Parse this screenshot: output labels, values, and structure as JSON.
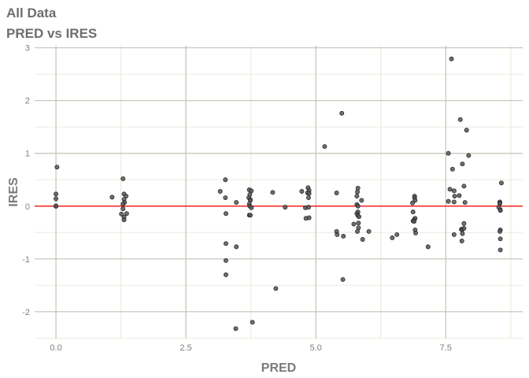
{
  "chart_data": {
    "type": "scatter",
    "title": "All Data",
    "subtitle": "PRED vs IRES",
    "xlabel": "PRED",
    "ylabel": "IRES",
    "xlim": [
      -0.41,
      8.98
    ],
    "ylim": [
      -2.51,
      3.04
    ],
    "xticks": [
      0,
      2.5,
      5,
      7.5
    ],
    "xtick_labels": [
      "0.0",
      "2.5",
      "5.0",
      "7.5"
    ],
    "yticks": [
      -2,
      -1,
      0,
      1,
      2,
      3
    ],
    "ytick_labels": [
      "-2",
      "-1",
      "0",
      "1",
      "2",
      "3"
    ],
    "grid": true,
    "reference_line": {
      "y": 0,
      "color": "#ff0000"
    },
    "point_color": "#555555",
    "points": [
      [
        0.02,
        0.74
      ],
      [
        0,
        0.23
      ],
      [
        0,
        0.14
      ],
      [
        0,
        0
      ],
      [
        0,
        0
      ],
      [
        0,
        0
      ],
      [
        1.29,
        0.52
      ],
      [
        1.08,
        0.17
      ],
      [
        1.31,
        0.23
      ],
      [
        1.35,
        0.19
      ],
      [
        1.31,
        0.13
      ],
      [
        1.32,
        0.07
      ],
      [
        1.29,
        0.04
      ],
      [
        1.29,
        -0.05
      ],
      [
        1.26,
        -0.15
      ],
      [
        1.36,
        -0.14
      ],
      [
        1.31,
        -0.21
      ],
      [
        1.31,
        -0.26
      ],
      [
        3.26,
        0.5
      ],
      [
        3.16,
        0.28
      ],
      [
        3.26,
        0.16
      ],
      [
        3.47,
        0.07
      ],
      [
        3.27,
        -0.14
      ],
      [
        3.27,
        -0.71
      ],
      [
        3.47,
        -0.77
      ],
      [
        3.27,
        -1.03
      ],
      [
        3.27,
        -1.3
      ],
      [
        3.46,
        -2.32
      ],
      [
        3.78,
        -2.2
      ],
      [
        4.23,
        -1.56
      ],
      [
        3.72,
        0.31
      ],
      [
        3.76,
        0.29
      ],
      [
        3.73,
        0.22
      ],
      [
        3.71,
        0.16
      ],
      [
        3.74,
        0.12
      ],
      [
        3.74,
        0.11
      ],
      [
        3.72,
        0.04
      ],
      [
        3.73,
        0
      ],
      [
        3.76,
        -0.03
      ],
      [
        3.72,
        -0.17
      ],
      [
        3.74,
        -0.17
      ],
      [
        4.17,
        0.26
      ],
      [
        4.41,
        -0.02
      ],
      [
        5.5,
        1.76
      ],
      [
        5.17,
        1.13
      ],
      [
        4.73,
        0.28
      ],
      [
        4.85,
        0.35
      ],
      [
        4.87,
        0.3
      ],
      [
        4.84,
        0.25
      ],
      [
        4.87,
        0.24
      ],
      [
        4.86,
        0.16
      ],
      [
        4.8,
        -0.03
      ],
      [
        4.86,
        -0.02
      ],
      [
        4.81,
        -0.23
      ],
      [
        4.87,
        -0.22
      ],
      [
        5.4,
        0.25
      ],
      [
        5.4,
        -0.48
      ],
      [
        5.41,
        -0.54
      ],
      [
        5.53,
        -0.57
      ],
      [
        5.52,
        -1.39
      ],
      [
        5.81,
        0.34
      ],
      [
        5.8,
        0.27
      ],
      [
        5.79,
        0.19
      ],
      [
        5.88,
        0.11
      ],
      [
        5.79,
        0.03
      ],
      [
        5.81,
        0
      ],
      [
        5.81,
        -0.11
      ],
      [
        5.79,
        -0.14
      ],
      [
        5.81,
        -0.18
      ],
      [
        5.83,
        -0.2
      ],
      [
        5.82,
        -0.32
      ],
      [
        5.73,
        -0.34
      ],
      [
        5.82,
        -0.41
      ],
      [
        5.8,
        -0.48
      ],
      [
        6.02,
        -0.48
      ],
      [
        5.9,
        -0.63
      ],
      [
        6.47,
        -0.6
      ],
      [
        6.56,
        -0.54
      ],
      [
        7.16,
        -0.77
      ],
      [
        6.9,
        0.19
      ],
      [
        6.9,
        0.16
      ],
      [
        6.91,
        0.11
      ],
      [
        6.86,
        0.06
      ],
      [
        6.87,
        -0.11
      ],
      [
        6.91,
        -0.23
      ],
      [
        6.89,
        -0.26
      ],
      [
        6.87,
        -0.28
      ],
      [
        6.89,
        -0.29
      ],
      [
        6.91,
        -0.45
      ],
      [
        6.92,
        -0.51
      ],
      [
        7.61,
        2.79
      ],
      [
        7.78,
        1.64
      ],
      [
        7.9,
        1.44
      ],
      [
        7.55,
        1.0
      ],
      [
        7.94,
        0.96
      ],
      [
        7.82,
        0.8
      ],
      [
        7.63,
        0.7
      ],
      [
        7.85,
        0.38
      ],
      [
        7.58,
        0.32
      ],
      [
        7.66,
        0.29
      ],
      [
        7.67,
        0.19
      ],
      [
        7.76,
        0.2
      ],
      [
        7.55,
        0.09
      ],
      [
        7.66,
        0.08
      ],
      [
        7.87,
        0.07
      ],
      [
        7.85,
        -0.33
      ],
      [
        7.8,
        -0.44
      ],
      [
        7.82,
        -0.44
      ],
      [
        7.85,
        -0.42
      ],
      [
        7.82,
        -0.52
      ],
      [
        7.66,
        -0.54
      ],
      [
        7.81,
        -0.66
      ],
      [
        8.57,
        0.44
      ],
      [
        8.54,
        0.08
      ],
      [
        8.54,
        0.06
      ],
      [
        8.54,
        0.05
      ],
      [
        8.52,
        -0.02
      ],
      [
        8.55,
        -0.07
      ],
      [
        8.55,
        -0.08
      ],
      [
        8.55,
        -0.45
      ],
      [
        8.54,
        -0.48
      ],
      [
        8.55,
        -0.62
      ],
      [
        8.55,
        -0.83
      ]
    ]
  }
}
